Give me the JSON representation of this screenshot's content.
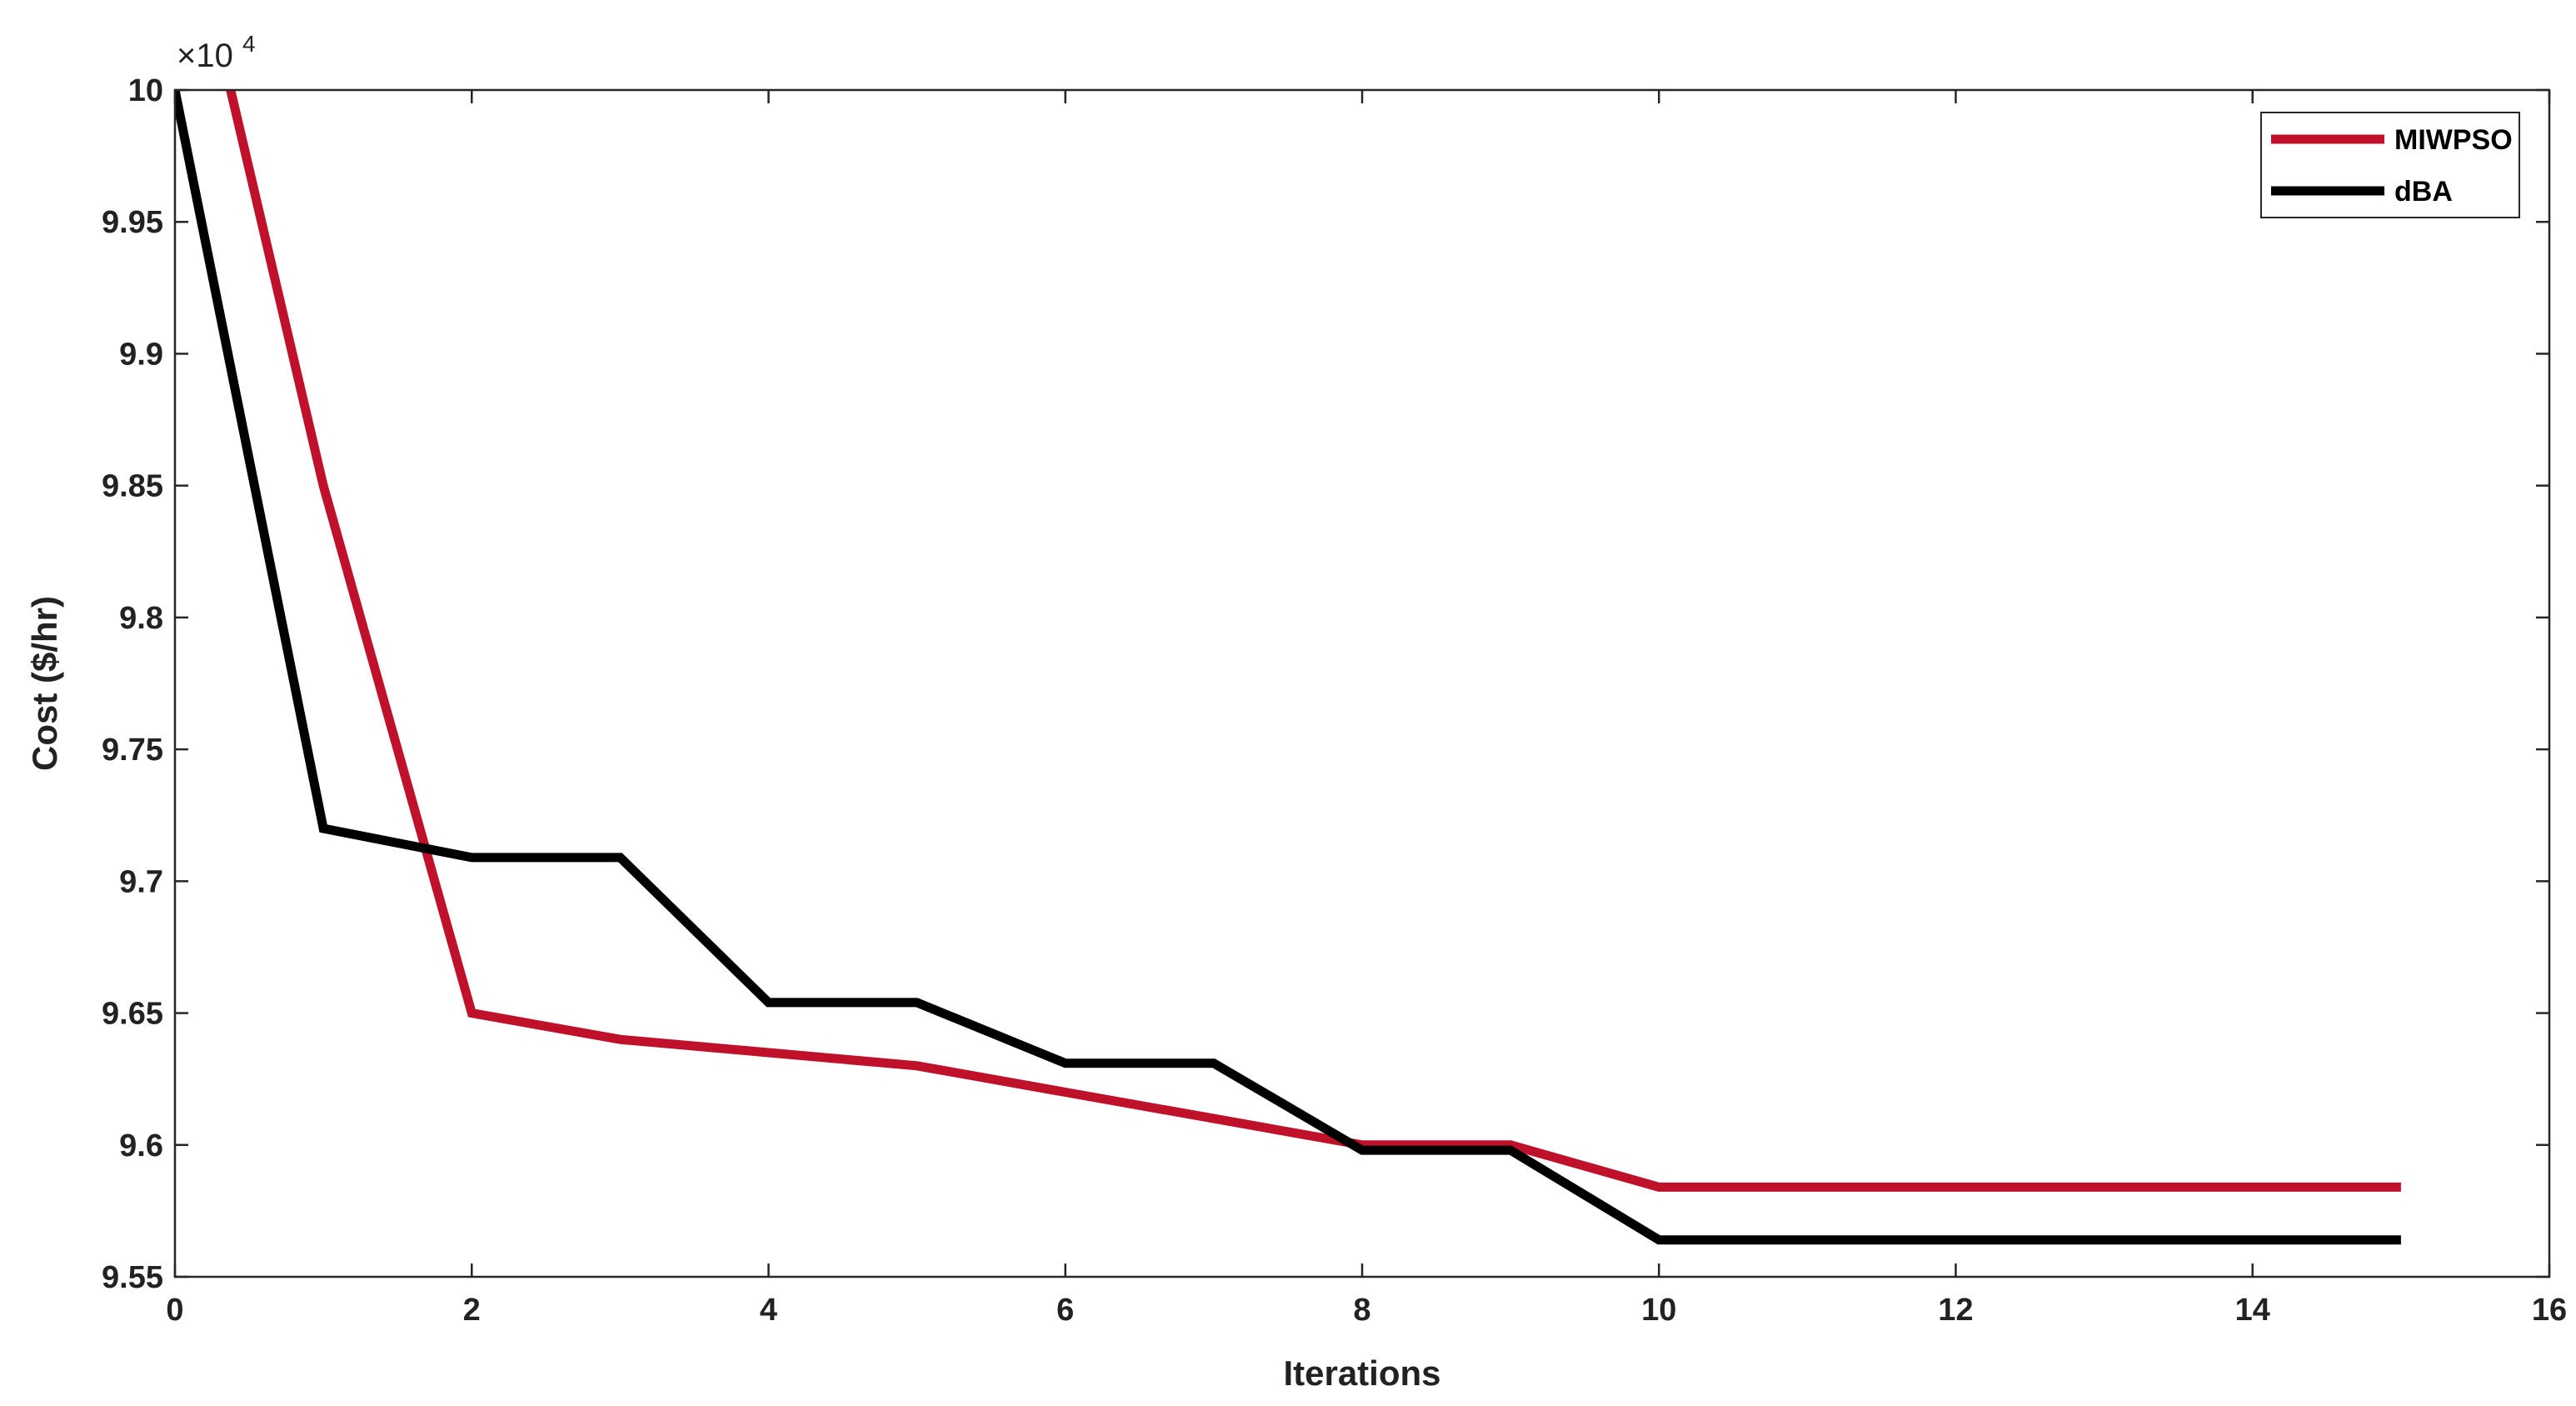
{
  "chart_data": {
    "type": "line",
    "title": "",
    "xlabel": "Iterations",
    "ylabel": "Cost ($/hr)",
    "y_exponent_label": "×10",
    "y_exponent_power": "4",
    "xlim": [
      0,
      16
    ],
    "ylim": [
      9.55,
      10
    ],
    "xticks": [
      0,
      2,
      4,
      6,
      8,
      10,
      12,
      14,
      16
    ],
    "xtick_labels": [
      "0",
      "2",
      "4",
      "6",
      "8",
      "10",
      "12",
      "14",
      "16"
    ],
    "yticks": [
      9.55,
      9.6,
      9.65,
      9.7,
      9.75,
      9.8,
      9.85,
      9.9,
      9.95,
      10
    ],
    "ytick_labels": [
      "9.55",
      "9.6",
      "9.65",
      "9.7",
      "9.75",
      "9.8",
      "9.85",
      "9.9",
      "9.95",
      "10"
    ],
    "grid": false,
    "legend_position": "top-right",
    "series": [
      {
        "name": "MIWPSO",
        "color": "#c0112b",
        "x": [
          0,
          1,
          2,
          3,
          4,
          5,
          6,
          7,
          8,
          9,
          10,
          11,
          12,
          13,
          14,
          15
        ],
        "y": [
          10.09,
          9.85,
          9.65,
          9.64,
          9.635,
          9.63,
          9.62,
          9.61,
          9.6,
          9.6,
          9.584,
          9.584,
          9.584,
          9.584,
          9.584,
          9.584
        ]
      },
      {
        "name": "dBA",
        "color": "#000000",
        "x": [
          0,
          1,
          2,
          3,
          4,
          5,
          6,
          7,
          8,
          9,
          10,
          11,
          12,
          13,
          14,
          15
        ],
        "y": [
          10.0,
          9.72,
          9.709,
          9.709,
          9.654,
          9.654,
          9.631,
          9.631,
          9.598,
          9.598,
          9.564,
          9.564,
          9.564,
          9.564,
          9.564,
          9.564
        ]
      }
    ]
  }
}
